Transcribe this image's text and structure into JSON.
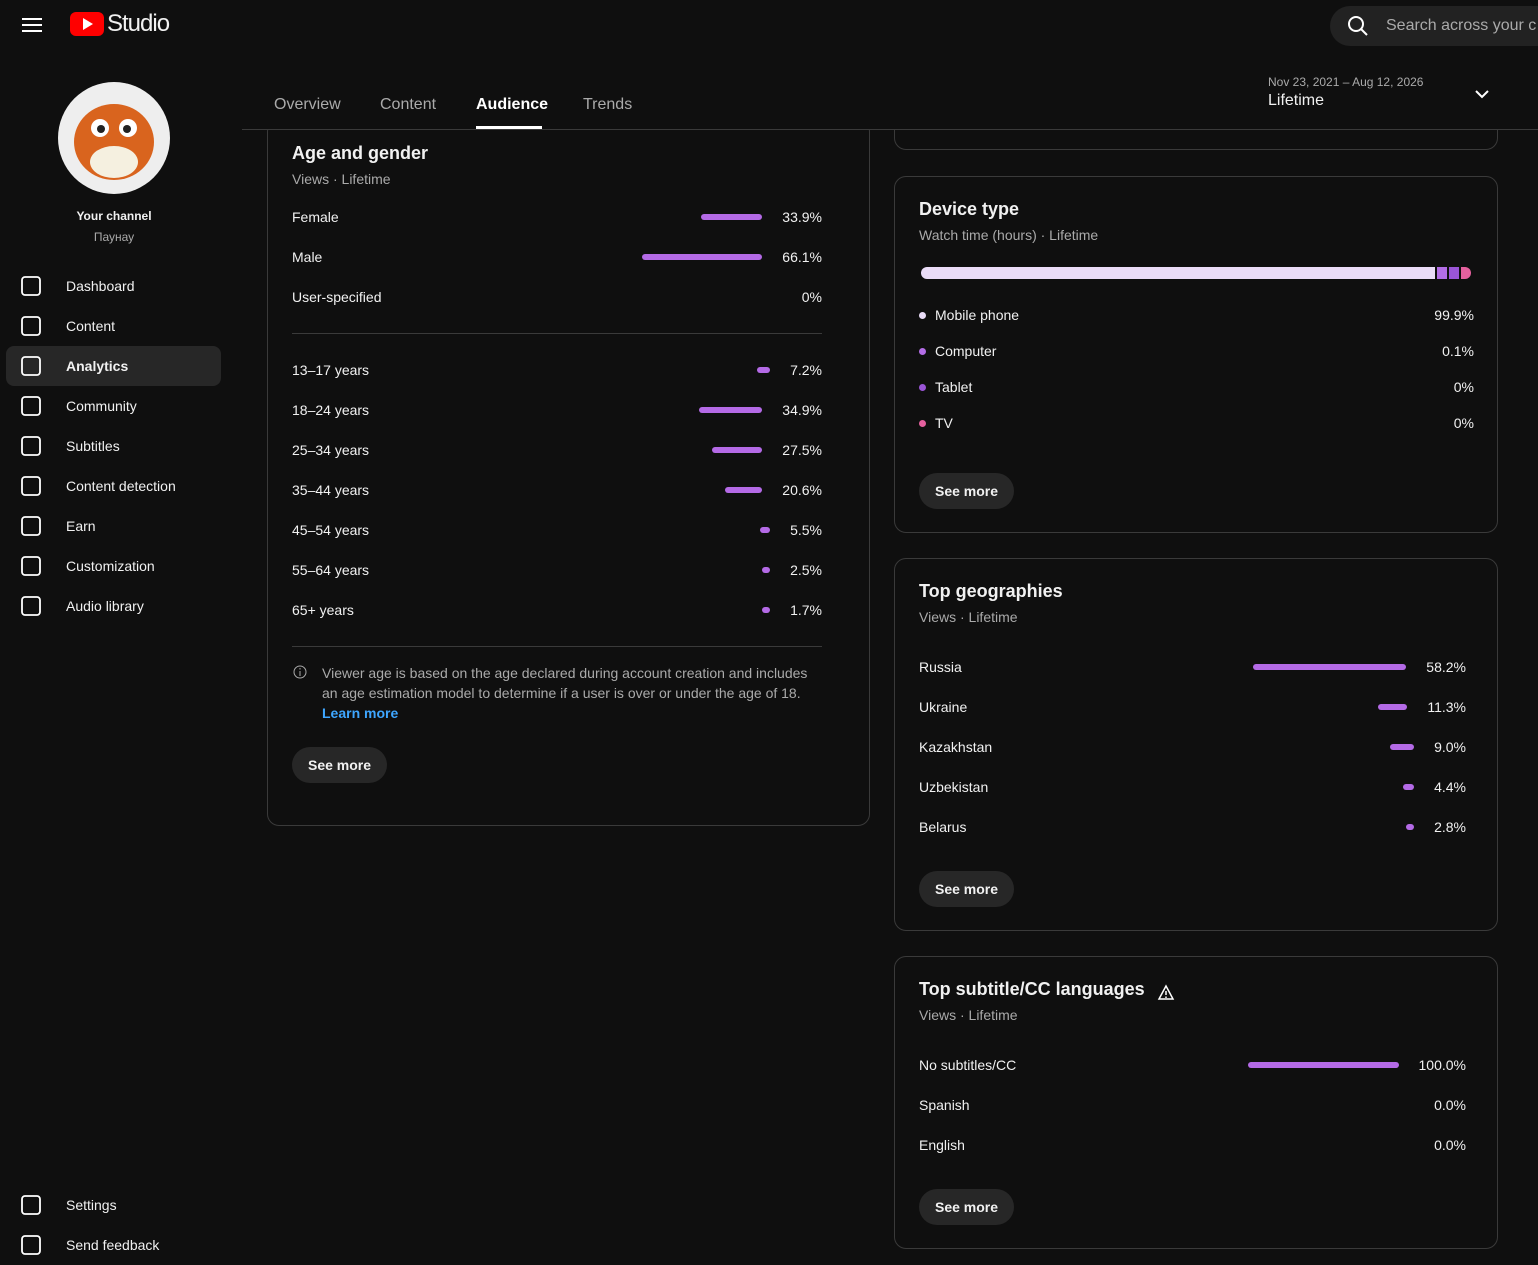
{
  "header": {
    "logo_text": "Studio",
    "search_placeholder": "Search across your c"
  },
  "channel": {
    "label": "Your channel",
    "name": "Паунау"
  },
  "nav": [
    "Dashboard",
    "Content",
    "Analytics",
    "Community",
    "Subtitles",
    "Content detection",
    "Earn",
    "Customization",
    "Audio library"
  ],
  "nav_bottom": [
    "Settings",
    "Send feedback"
  ],
  "tabs": [
    "Overview",
    "Content",
    "Audience",
    "Trends"
  ],
  "date_range": {
    "dates": "Nov 23, 2021 – Aug 12, 2026",
    "period": "Lifetime"
  },
  "age_gender": {
    "title": "Age and gender",
    "subtitle": "Views · Lifetime",
    "gender": [
      {
        "label": "Female",
        "value": 33.9,
        "value_label": "33.9%"
      },
      {
        "label": "Male",
        "value": 66.1,
        "value_label": "66.1%"
      },
      {
        "label": "User-specified",
        "value": 0,
        "value_label": "0%"
      }
    ],
    "age": [
      {
        "label": "13–17 years",
        "value": 7.2,
        "value_label": "7.2%"
      },
      {
        "label": "18–24 years",
        "value": 34.9,
        "value_label": "34.9%"
      },
      {
        "label": "25–34 years",
        "value": 27.5,
        "value_label": "27.5%"
      },
      {
        "label": "35–44 years",
        "value": 20.6,
        "value_label": "20.6%"
      },
      {
        "label": "45–54 years",
        "value": 5.5,
        "value_label": "5.5%"
      },
      {
        "label": "55–64 years",
        "value": 2.5,
        "value_label": "2.5%"
      },
      {
        "label": "65+ years",
        "value": 1.7,
        "value_label": "1.7%"
      }
    ],
    "note": "Viewer age is based on the age declared during account creation and includes an age estimation model to determine if a user is over or under the age of 18.",
    "learn_more": "Learn more",
    "button": "See more"
  },
  "device_type": {
    "title": "Device type",
    "subtitle": "Watch time (hours) · Lifetime",
    "rows": [
      {
        "label": "Mobile phone",
        "value": 99.9,
        "value_label": "99.9%",
        "color": "#eadcf7"
      },
      {
        "label": "Computer",
        "value": 0.1,
        "value_label": "0.1%",
        "color": "#b36de6"
      },
      {
        "label": "Tablet",
        "value": 0,
        "value_label": "0%",
        "color": "#9a55d6"
      },
      {
        "label": "TV",
        "value": 0,
        "value_label": "0%",
        "color": "#e5609e"
      }
    ],
    "button": "See more"
  },
  "geographies": {
    "title": "Top geographies",
    "subtitle": "Views · Lifetime",
    "rows": [
      {
        "label": "Russia",
        "value": 58.2,
        "value_label": "58.2%"
      },
      {
        "label": "Ukraine",
        "value": 11.3,
        "value_label": "11.3%"
      },
      {
        "label": "Kazakhstan",
        "value": 9.0,
        "value_label": "9.0%"
      },
      {
        "label": "Uzbekistan",
        "value": 4.4,
        "value_label": "4.4%"
      },
      {
        "label": "Belarus",
        "value": 2.8,
        "value_label": "2.8%"
      }
    ],
    "button": "See more"
  },
  "subtitle_languages": {
    "title": "Top subtitle/CC languages",
    "subtitle": "Views · Lifetime",
    "rows": [
      {
        "label": "No subtitles/CC",
        "value": 100.0,
        "value_label": "100.0%"
      },
      {
        "label": "Spanish",
        "value": 0.0,
        "value_label": "0.0%"
      },
      {
        "label": "English",
        "value": 0.0,
        "value_label": "0.0%"
      }
    ],
    "button": "See more"
  }
}
